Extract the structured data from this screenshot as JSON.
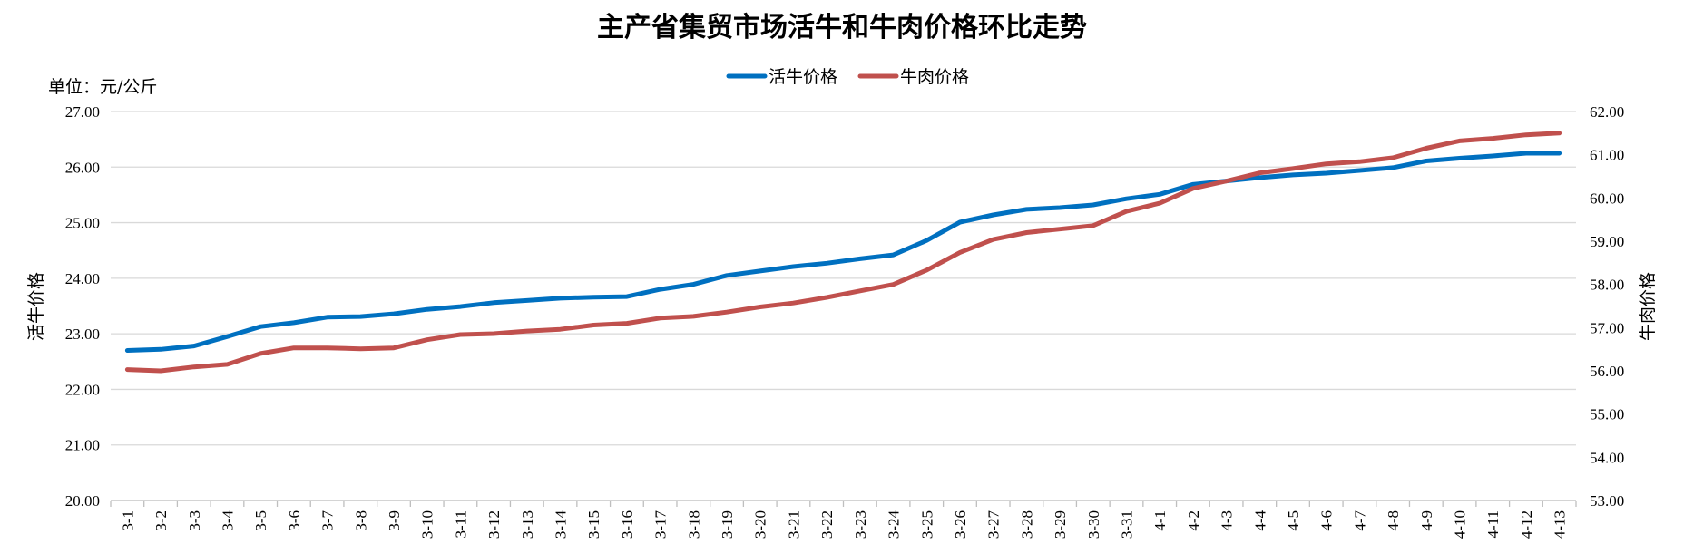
{
  "chart_data": {
    "type": "line",
    "title": "主产省集贸市场活牛和牛肉价格环比走势",
    "unit_label": "单位：元/公斤",
    "ylabel": "活牛价格",
    "y2label": "牛肉价格",
    "ylim": [
      20,
      27
    ],
    "y2lim": [
      53,
      62
    ],
    "y_ticks": [
      "20.00",
      "21.00",
      "22.00",
      "23.00",
      "24.00",
      "25.00",
      "26.00",
      "27.00"
    ],
    "y2_ticks": [
      "53.00",
      "54.00",
      "55.00",
      "56.00",
      "57.00",
      "58.00",
      "59.00",
      "60.00",
      "61.00",
      "62.00"
    ],
    "legend_position": "top-center",
    "grid": true,
    "categories": [
      "3-1",
      "3-2",
      "3-3",
      "3-4",
      "3-5",
      "3-6",
      "3-7",
      "3-8",
      "3-9",
      "3-10",
      "3-11",
      "3-12",
      "3-13",
      "3-14",
      "3-15",
      "3-16",
      "3-17",
      "3-18",
      "3-19",
      "3-20",
      "3-21",
      "3-22",
      "3-23",
      "3-24",
      "3-25",
      "3-26",
      "3-27",
      "3-28",
      "3-29",
      "3-30",
      "3-31",
      "4-1",
      "4-2",
      "4-3",
      "4-4",
      "4-5",
      "4-6",
      "4-7",
      "4-8",
      "4-9",
      "4-10",
      "4-11",
      "4-12",
      "4-13"
    ],
    "series": [
      {
        "name": "活牛价格",
        "axis": "left",
        "color": "#0070C0",
        "values": [
          22.7,
          22.72,
          22.78,
          22.95,
          23.13,
          23.2,
          23.3,
          23.31,
          23.36,
          23.44,
          23.49,
          23.56,
          23.6,
          23.64,
          23.66,
          23.67,
          23.8,
          23.89,
          24.05,
          24.13,
          24.21,
          24.27,
          24.35,
          24.42,
          24.68,
          25.01,
          25.14,
          25.24,
          25.27,
          25.32,
          25.43,
          25.51,
          25.69,
          25.75,
          25.81,
          25.86,
          25.89,
          25.94,
          25.99,
          26.11,
          26.16,
          26.2,
          26.25,
          26.25
        ]
      },
      {
        "name": "牛肉价格",
        "axis": "right",
        "color": "#C0504D",
        "values": [
          56.03,
          56.0,
          56.09,
          56.15,
          56.4,
          56.53,
          56.53,
          56.51,
          56.53,
          56.72,
          56.84,
          56.86,
          56.92,
          56.96,
          57.06,
          57.1,
          57.22,
          57.26,
          57.36,
          57.48,
          57.57,
          57.7,
          57.85,
          58.0,
          58.33,
          58.74,
          59.04,
          59.2,
          59.28,
          59.36,
          59.69,
          59.88,
          60.22,
          60.39,
          60.58,
          60.68,
          60.79,
          60.84,
          60.93,
          61.15,
          61.32,
          61.38,
          61.46,
          61.5
        ]
      }
    ]
  }
}
